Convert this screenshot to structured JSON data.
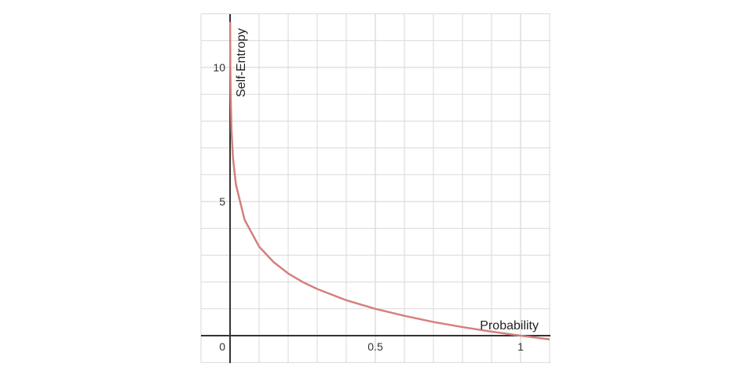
{
  "chart_data": {
    "type": "line",
    "title": "",
    "xlabel": "Probability",
    "ylabel": "Self-Entropy",
    "xlim": [
      -0.1,
      1.1
    ],
    "ylim": [
      -1,
      12
    ],
    "grid": true,
    "xticks": [
      0,
      0.5,
      1
    ],
    "xtick_labels": [
      "0",
      "0.5",
      "1"
    ],
    "yticks": [
      5,
      10
    ],
    "ytick_labels": [
      "5",
      "10"
    ],
    "series": [
      {
        "function": "-log2(x)",
        "color": "#d47f7f",
        "x": [
          0.0003,
          0.0005,
          0.001,
          0.002,
          0.005,
          0.01,
          0.02,
          0.05,
          0.1,
          0.15,
          0.2,
          0.25,
          0.3,
          0.4,
          0.5,
          0.6,
          0.7,
          0.8,
          0.9,
          1.0,
          1.1
        ],
        "y": [
          11.7,
          10.97,
          9.97,
          8.97,
          7.64,
          6.64,
          5.64,
          4.32,
          3.32,
          2.74,
          2.32,
          2.0,
          1.74,
          1.32,
          1.0,
          0.74,
          0.51,
          0.32,
          0.15,
          0.0,
          -0.14
        ]
      }
    ]
  },
  "colors": {
    "grid": "#d9d9d9",
    "axis": "#333333",
    "curve": "#d47f7f"
  }
}
